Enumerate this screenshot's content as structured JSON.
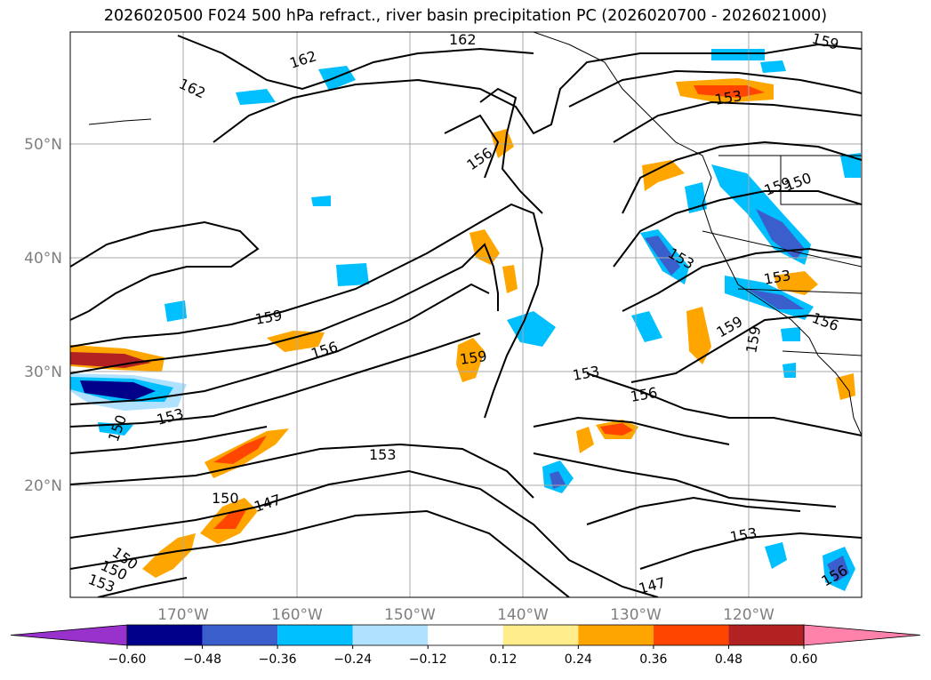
{
  "title": "2026020500 F024 500 hPa refract., river basin precipitation PC (2026020700 - 2026021000)",
  "axes": {
    "lat_labels": [
      "50°N",
      "40°N",
      "30°N",
      "20°N"
    ],
    "lon_labels": [
      "170°W",
      "160°W",
      "150°W",
      "140°W",
      "130°W",
      "120°W"
    ]
  },
  "contour_labels": [
    "162",
    "162",
    "162",
    "159",
    "156",
    "159",
    "156",
    "153",
    "150",
    "150",
    "159",
    "153",
    "153",
    "156",
    "159",
    "156",
    "153",
    "159",
    "153",
    "147",
    "150",
    "153",
    "147",
    "153",
    "150",
    "153",
    "156",
    "159",
    "150"
  ],
  "colorbar": {
    "ticks": [
      "−0.60",
      "−0.48",
      "−0.36",
      "−0.24",
      "−0.12",
      "0.12",
      "0.24",
      "0.36",
      "0.48",
      "0.60"
    ],
    "colors": [
      "#9932cc",
      "#00008b",
      "#3a5fcd",
      "#00bfff",
      "#b0e2ff",
      "#ffffff",
      "#ffec8b",
      "#ffa500",
      "#ff4500",
      "#b22222",
      "#ff82ab"
    ]
  },
  "colors": {
    "neg_strong": "#00008b",
    "neg_med": "#3a5fcd",
    "neg": "#00bfff",
    "neg_light": "#b0e2ff",
    "pos_light": "#ffec8b",
    "pos": "#ffa500",
    "pos_med": "#ff4500",
    "pos_strong": "#b22222"
  }
}
